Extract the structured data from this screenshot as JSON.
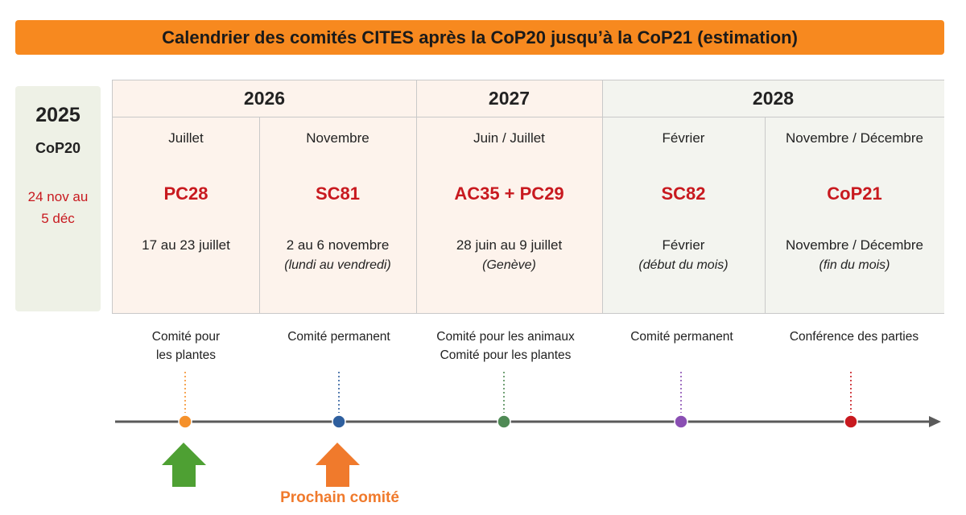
{
  "title": "Calendrier des comités CITES après la CoP20 jusqu’à la CoP21 (estimation)",
  "start": {
    "year": "2025",
    "event": "CoP20",
    "dates_line1": "24 nov au",
    "dates_line2": "5 déc"
  },
  "years": [
    "2026",
    "2027",
    "2028"
  ],
  "meetings": [
    {
      "month": "Juillet",
      "code": "PC28",
      "dates": "17 au 23 juillet",
      "note": "",
      "desc_line1": "Comité pour",
      "desc_line2": "les plantes",
      "color": "#f5912b"
    },
    {
      "month": "Novembre",
      "code": "SC81",
      "dates": "2 au 6 novembre",
      "note": "(lundi au vendredi)",
      "desc_line1": "Comité permanent",
      "desc_line2": "",
      "color": "#2e5f9e"
    },
    {
      "month": "Juin / Juillet",
      "code": "AC35 + PC29",
      "dates": "28 juin au 9 juillet",
      "note": "(Genève)",
      "desc_line1": "Comité pour les animaux",
      "desc_line2": "Comité pour les plantes",
      "color": "#4f8a55"
    },
    {
      "month": "Février",
      "code": "SC82",
      "dates": "Février",
      "note": "(début du mois)",
      "desc_line1": "Comité permanent",
      "desc_line2": "",
      "color": "#8a4fb3"
    },
    {
      "month": "Novembre / Décembre",
      "code": "CoP21",
      "dates": "Novembre / Décembre",
      "note": "(fin du mois)",
      "desc_line1": "Conférence des parties",
      "desc_line2": "",
      "color": "#c8191f"
    }
  ],
  "next_label": "Prochain comité",
  "colors": {
    "banner": "#f7891f",
    "accent_red": "#c8191f",
    "past_arrow": "#4ea033",
    "next_arrow": "#f07a2c",
    "warm_bg": "#fdf3ec",
    "cool_bg": "#f3f4ef"
  }
}
